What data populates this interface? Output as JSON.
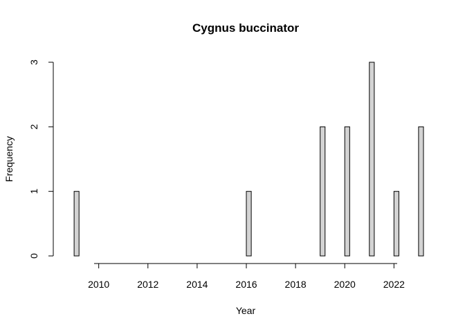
{
  "chart_data": {
    "type": "bar",
    "title": "Cygnus buccinator",
    "xlabel": "Year",
    "ylabel": "Frequency",
    "xlim": [
      2008.8,
      2023.2
    ],
    "ylim": [
      0,
      3
    ],
    "x_ticks": [
      "2010",
      "2012",
      "2014",
      "2016",
      "2018",
      "2020",
      "2022"
    ],
    "y_ticks": [
      "0",
      "1",
      "2",
      "3"
    ],
    "bin_width": 0.2,
    "bins": [
      {
        "x": 2009.0,
        "value": 1
      },
      {
        "x": 2016.0,
        "value": 1
      },
      {
        "x": 2019.0,
        "value": 2
      },
      {
        "x": 2020.0,
        "value": 2
      },
      {
        "x": 2021.0,
        "value": 3
      },
      {
        "x": 2022.0,
        "value": 1
      },
      {
        "x": 2023.0,
        "value": 2
      }
    ],
    "bar_color": "#d3d3d3",
    "grid": false,
    "legend": "none"
  }
}
